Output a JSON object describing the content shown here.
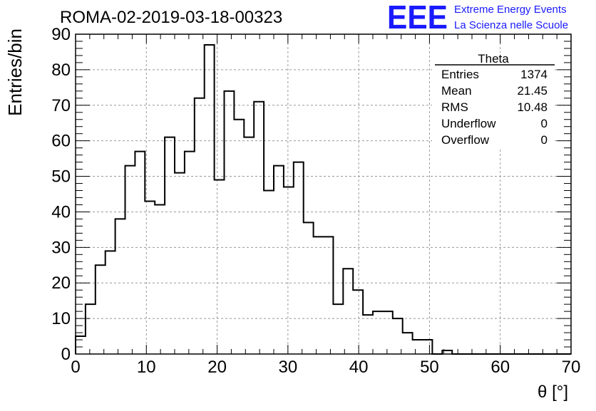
{
  "chart_data": {
    "type": "bar",
    "subtype": "histogram",
    "title": "ROMA-02-2019-03-18-00323",
    "xlabel": "θ [°]",
    "ylabel": "Entries/bin",
    "xlim": [
      0,
      70
    ],
    "ylim": [
      0,
      90
    ],
    "bin_width": 1.4,
    "x_ticks": [
      "0",
      "10",
      "20",
      "30",
      "40",
      "50",
      "60",
      "70"
    ],
    "y_ticks": [
      "0",
      "10",
      "20",
      "30",
      "40",
      "50",
      "60",
      "70",
      "80",
      "90"
    ],
    "grid": true,
    "values": [
      5,
      14,
      25,
      29,
      38,
      53,
      57,
      43,
      42,
      61,
      51,
      57,
      72,
      87,
      49,
      74,
      66,
      61,
      71,
      46,
      53,
      47,
      54,
      37,
      33,
      33,
      14,
      24,
      18,
      11,
      12,
      12,
      10,
      6,
      4,
      4,
      0,
      1,
      0,
      0,
      0,
      0,
      0,
      0,
      0,
      0,
      0,
      0,
      0,
      0
    ],
    "stats_box": {
      "title": "Theta",
      "rows": [
        {
          "label": "Entries",
          "value": "1374"
        },
        {
          "label": "Mean",
          "value": "21.45"
        },
        {
          "label": "RMS",
          "value": "10.48"
        },
        {
          "label": "Underflow",
          "value": "0"
        },
        {
          "label": "Overflow",
          "value": "0"
        }
      ]
    }
  },
  "logo": {
    "text": "EEE",
    "line1": "Extreme Energy Events",
    "line2": "La Scienza nelle Scuole",
    "color": "#1a1aff"
  },
  "colors": {
    "line": "#000000",
    "grid": "#999999"
  }
}
